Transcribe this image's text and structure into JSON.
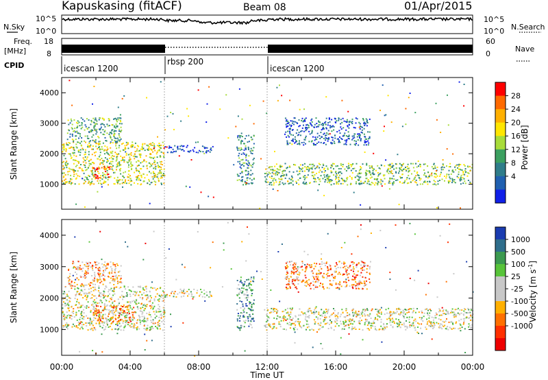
{
  "header": {
    "site": "Kapuskasing (fitACF)",
    "beam": "Beam 08",
    "date": "01/Apr/2015"
  },
  "top_panels": {
    "nsky_label": "N.Sky",
    "nsky_ticks": [
      "10^5",
      "10^0"
    ],
    "nsky_right_ticks": [
      "10^5",
      "10^0"
    ],
    "nsearch_label": "N.Search",
    "freq_label": "Freq.",
    "freq_unit": "[MHz]",
    "freq_ticks": [
      "18",
      "8"
    ],
    "nave_ticks": [
      "60",
      "0"
    ],
    "nave_label": "Nave",
    "cpid_label": "CPID",
    "cpid_segments": [
      {
        "label": "icescan 1200",
        "start_hour": 0,
        "end_hour": 6
      },
      {
        "label": "rbsp 200",
        "start_hour": 6,
        "end_hour": 12
      },
      {
        "label": "icescan 1200",
        "start_hour": 12,
        "end_hour": 24
      }
    ]
  },
  "chart_data": [
    {
      "type": "heatmap",
      "title": "",
      "ylabel": "Slant Range [km]",
      "xlabel": "",
      "x_ticks": [
        "00:00",
        "04:00",
        "08:00",
        "12:00",
        "16:00",
        "20:00",
        "00:00"
      ],
      "xlim_hours": [
        0,
        24
      ],
      "ylim_km": [
        180,
        4500
      ],
      "y_ticks": [
        1000,
        2000,
        3000,
        4000
      ],
      "colorbar": {
        "label": "Power [dB]",
        "ticks": [
          "28",
          "24",
          "20",
          "16",
          "12",
          "8",
          "4"
        ],
        "colors": [
          "#ff0000",
          "#ff6a00",
          "#ffb000",
          "#ffe600",
          "#a8dc3a",
          "#3ca060",
          "#2f7d8a",
          "#2060b0",
          "#1020e8"
        ]
      },
      "echo_regions": [
        {
          "h0": 0,
          "h1": 6,
          "r0": 1000,
          "r1": 2400,
          "level": 0.55
        },
        {
          "h0": 0.3,
          "h1": 3.5,
          "r0": 2400,
          "r1": 3200,
          "level": 0.35
        },
        {
          "h0": 1.8,
          "h1": 2.8,
          "r0": 1200,
          "r1": 1600,
          "level": 0.9
        },
        {
          "h0": 6,
          "h1": 8.8,
          "r0": 2050,
          "r1": 2300,
          "level": 0.15
        },
        {
          "h0": 10.2,
          "h1": 11.2,
          "r0": 1000,
          "r1": 2700,
          "level": 0.3
        },
        {
          "h0": 11.8,
          "h1": 24,
          "r0": 1000,
          "r1": 1700,
          "level": 0.45
        },
        {
          "h0": 13,
          "h1": 18,
          "r0": 2300,
          "r1": 3200,
          "level": 0.2
        }
      ]
    },
    {
      "type": "heatmap",
      "title": "",
      "ylabel": "Slant Range [km]",
      "xlabel": "Time UT",
      "x_ticks": [
        "00:00",
        "04:00",
        "08:00",
        "12:00",
        "16:00",
        "20:00",
        "00:00"
      ],
      "xlim_hours": [
        0,
        24
      ],
      "ylim_km": [
        180,
        4500
      ],
      "y_ticks": [
        1000,
        2000,
        3000,
        4000
      ],
      "colorbar": {
        "label": "Velocity [m s^-1]",
        "ticks": [
          "1000",
          "500",
          "100",
          "25",
          "-25",
          "-100",
          "-500",
          "-1000"
        ],
        "colors": [
          "#1a3cb0",
          "#2f6e8c",
          "#3c9a50",
          "#58c43a",
          "#c8c8c8",
          "#c8c8c8",
          "#ffb000",
          "#ff7000",
          "#ff3000",
          "#ee0000"
        ]
      },
      "echo_regions": [
        {
          "h0": 0,
          "h1": 6,
          "r0": 1000,
          "r1": 2400,
          "level": 0.5
        },
        {
          "h0": 0.3,
          "h1": 3.5,
          "r0": 2400,
          "r1": 3200,
          "level": 0.65
        },
        {
          "h0": 1.8,
          "h1": 4.2,
          "r0": 1200,
          "r1": 1800,
          "level": 0.75
        },
        {
          "h0": 6,
          "h1": 8.8,
          "r0": 2050,
          "r1": 2300,
          "level": 0.5
        },
        {
          "h0": 10.2,
          "h1": 11.2,
          "r0": 1000,
          "r1": 2700,
          "level": 0.25
        },
        {
          "h0": 11.8,
          "h1": 24,
          "r0": 1000,
          "r1": 1700,
          "level": 0.5
        },
        {
          "h0": 13,
          "h1": 18,
          "r0": 2300,
          "r1": 3200,
          "level": 0.7
        }
      ]
    }
  ]
}
